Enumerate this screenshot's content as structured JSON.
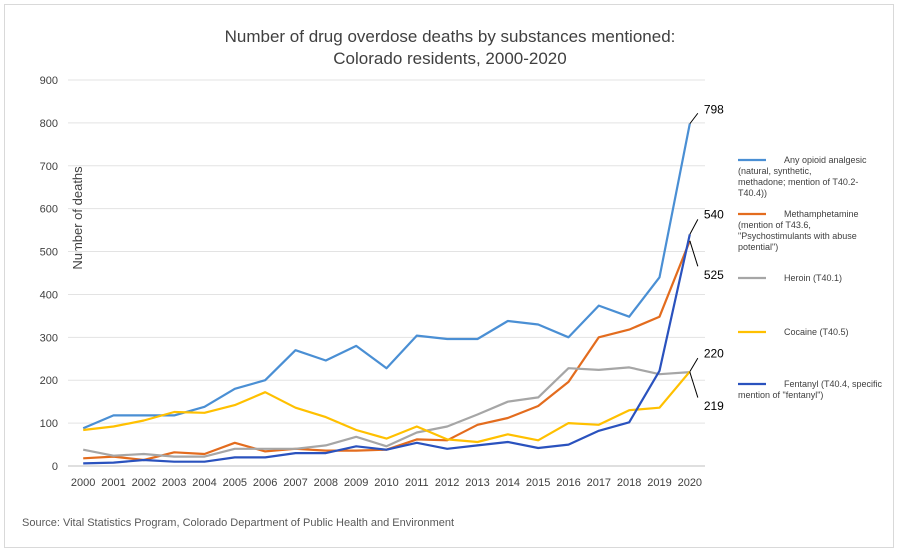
{
  "chart_data": {
    "type": "line",
    "title_line1": "Number of drug overdose deaths by substances mentioned:",
    "title_line2": "Colorado residents, 2000-2020",
    "xlabel": "",
    "ylabel": "Number of deaths",
    "ylim": [
      0,
      900
    ],
    "yticks": [
      "0",
      "100",
      "200",
      "300",
      "400",
      "500",
      "600",
      "700",
      "800",
      "900"
    ],
    "categories": [
      "2000",
      "2001",
      "2002",
      "2003",
      "2004",
      "2005",
      "2006",
      "2007",
      "2008",
      "2009",
      "2010",
      "2011",
      "2012",
      "2013",
      "2014",
      "2015",
      "2016",
      "2017",
      "2018",
      "2019",
      "2020"
    ],
    "grid": true,
    "legend_position": "right",
    "series": [
      {
        "name": "Any opioid analgesic (natural, synthetic, methadone; mention of T40.2-T40.4))",
        "legend_lines": [
          "Any opioid analgesic",
          "(natural, synthetic,",
          "methadone; mention of T40.2-",
          "T40.4))"
        ],
        "color": "#4a8fd4",
        "values": [
          88,
          118,
          118,
          118,
          138,
          180,
          200,
          270,
          246,
          280,
          228,
          304,
          296,
          296,
          338,
          330,
          300,
          374,
          348,
          440,
          798
        ],
        "end_label": "798"
      },
      {
        "name": "Methamphetamine (mention of T43.6, \"Psychostimulants with abuse potential\")",
        "legend_lines": [
          "Methamphetamine",
          "(mention of T43.6,",
          "\"Psychostimulants with abuse",
          "potential\")"
        ],
        "color": "#e36c1e",
        "values": [
          18,
          22,
          14,
          32,
          28,
          54,
          34,
          40,
          36,
          36,
          38,
          62,
          60,
          96,
          112,
          140,
          196,
          300,
          318,
          348,
          525
        ],
        "end_label": "525"
      },
      {
        "name": "Heroin (T40.1)",
        "legend_lines": [
          "Heroin (T40.1)"
        ],
        "color": "#a6a6a6",
        "values": [
          38,
          24,
          28,
          22,
          22,
          40,
          40,
          40,
          48,
          68,
          46,
          78,
          92,
          120,
          150,
          160,
          228,
          224,
          230,
          214,
          219
        ],
        "end_label": "219"
      },
      {
        "name": "Cocaine (T40.5)",
        "legend_lines": [
          "Cocaine (T40.5)"
        ],
        "color": "#ffc000",
        "values": [
          84,
          92,
          106,
          126,
          124,
          142,
          172,
          136,
          114,
          84,
          64,
          92,
          62,
          56,
          74,
          60,
          100,
          96,
          130,
          136,
          220
        ],
        "end_label": "220"
      },
      {
        "name": "Fentanyl (T40.4, specific mention of \"fentanyl\")",
        "legend_lines": [
          "Fentanyl (T40.4, specific",
          "mention of \"fentanyl\")"
        ],
        "color": "#2a52be",
        "values": [
          6,
          8,
          14,
          10,
          10,
          20,
          20,
          30,
          30,
          46,
          38,
          54,
          40,
          48,
          56,
          42,
          50,
          82,
          102,
          222,
          540
        ],
        "end_label": "540"
      }
    ],
    "source": "Source:  Vital Statistics Program, Colorado Department of Public Health and Environment"
  }
}
